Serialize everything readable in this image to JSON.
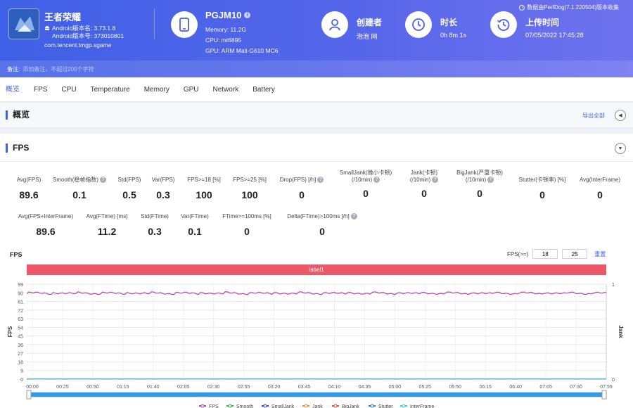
{
  "header": {
    "app": {
      "name": "王者荣耀",
      "version_line": "Android版本名: 3.73.1.8",
      "version_code_line": "Android版本号: 373010801",
      "package": "com.tencent.tmgp.sgame"
    },
    "device": {
      "name": "PGJM10",
      "memory": "Memory: 11.2G",
      "cpu": "CPU: mt6895",
      "gpu": "GPU: ARM Mali-G610 MC6"
    },
    "creator": {
      "title": "创建者",
      "value": "泡泡 网"
    },
    "duration": {
      "title": "时长",
      "value": "0h 8m 1s"
    },
    "upload": {
      "title": "上传时间",
      "value": "07/05/2022 17:45:28"
    },
    "perfdog_note": "数据由PerfDog(7.1.220504)版本收集",
    "remark_label": "备注:",
    "remark_placeholder": "添加备注，不超过200个字符"
  },
  "tabs": [
    "概览",
    "FPS",
    "CPU",
    "Temperature",
    "Memory",
    "GPU",
    "Network",
    "Battery"
  ],
  "overview": {
    "title": "概览",
    "export_label": "导出全部"
  },
  "fps_section": {
    "title": "FPS",
    "metrics_row1": [
      {
        "label": "Avg(FPS)",
        "value": "89.6"
      },
      {
        "label": "Smooth(稳帧指数)",
        "value": "0.1",
        "help": true
      },
      {
        "label": "Std(FPS)",
        "value": "0.5"
      },
      {
        "label": "Var(FPS)",
        "value": "0.3"
      },
      {
        "label": "FPS>=18 [%]",
        "value": "100"
      },
      {
        "label": "FPS>=25 [%]",
        "value": "100"
      },
      {
        "label": "Drop(FPS) [/h]",
        "value": "0",
        "help": true
      },
      {
        "label": "SmallJank(微小卡顿)",
        "label2": "(/10min)",
        "value": "0",
        "help": true
      },
      {
        "label": "Jank(卡顿)",
        "label2": "(/10min)",
        "value": "0",
        "help": true
      },
      {
        "label": "BigJank(严重卡顿)",
        "label2": "(/10min)",
        "value": "0",
        "help": true
      },
      {
        "label": "Stutter(卡顿率) [%]",
        "value": "0"
      },
      {
        "label": "Avg(InterFrame)",
        "value": "0"
      }
    ],
    "metrics_row2": [
      {
        "label": "Avg(FPS+InterFrame)",
        "value": "89.6"
      },
      {
        "label": "Avg(FTime) [ms]",
        "value": "11.2"
      },
      {
        "label": "Std(FTime)",
        "value": "0.3"
      },
      {
        "label": "Var(FTime)",
        "value": "0.1"
      },
      {
        "label": "FTime>=100ms [%]",
        "value": "0"
      },
      {
        "label": "Delta(FTime)>100ms [/h]",
        "value": "0",
        "help": true
      }
    ],
    "threshold_label": "FPS(>=)",
    "threshold_1": "18",
    "threshold_2": "25",
    "reset_label": "重置",
    "band_label": "label1"
  },
  "chart_data": {
    "type": "line",
    "ylabel": "FPS",
    "y2label": "Jank",
    "ylim": [
      0,
      99
    ],
    "yticks": [
      0,
      9,
      18,
      27,
      36,
      45,
      54,
      63,
      72,
      81,
      90,
      99
    ],
    "y2ticks": [
      "0",
      "1"
    ],
    "xticks": [
      "00:00",
      "00:25",
      "00:50",
      "01:15",
      "01:40",
      "02:05",
      "02:30",
      "02:55",
      "03:20",
      "03:45",
      "04:10",
      "04:35",
      "05:00",
      "05:25",
      "05:50",
      "06:15",
      "06:40",
      "07:05",
      "07:30",
      "07:55"
    ],
    "x_end_seconds": 481,
    "series": [
      {
        "name": "FPS",
        "color": "#b43fb0",
        "approx_value": 89.6
      },
      {
        "name": "Smooth",
        "color": "#3cab4b",
        "approx_value": 0.1
      },
      {
        "name": "SmallJank",
        "color": "#3c3fd8",
        "approx_value": 0
      },
      {
        "name": "Jank",
        "color": "#f08a3e",
        "approx_value": 0
      },
      {
        "name": "BigJank",
        "color": "#e74c3c",
        "approx_value": 0
      },
      {
        "name": "Stutter",
        "color": "#3a79d6",
        "approx_value": 0
      },
      {
        "name": "InterFrame",
        "color": "#3ec6e6",
        "approx_value": 0
      }
    ],
    "grid": true,
    "legend_position": "bottom"
  }
}
